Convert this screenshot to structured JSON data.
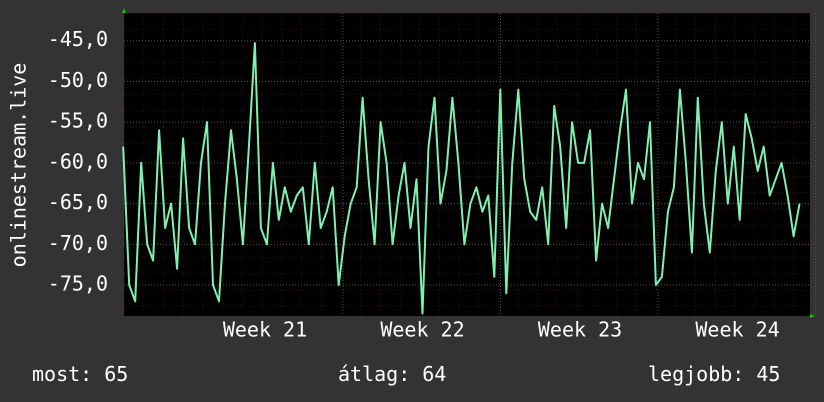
{
  "chart_data": {
    "type": "line",
    "y_label": "onlinestream.live",
    "x": [
      20.1,
      20.138,
      20.176,
      20.214,
      20.252,
      20.29,
      20.328,
      20.366,
      20.404,
      20.442,
      20.48,
      20.518,
      20.556,
      20.594,
      20.632,
      20.67,
      20.708,
      20.746,
      20.784,
      20.822,
      20.86,
      20.898,
      20.936,
      20.974,
      21.012,
      21.05,
      21.088,
      21.126,
      21.164,
      21.202,
      21.24,
      21.278,
      21.316,
      21.354,
      21.392,
      21.43,
      21.468,
      21.506,
      21.544,
      21.582,
      21.62,
      21.658,
      21.696,
      21.734,
      21.772,
      21.81,
      21.848,
      21.886,
      21.924,
      21.962,
      22.0,
      22.038,
      22.076,
      22.114,
      22.152,
      22.19,
      22.228,
      22.266,
      22.304,
      22.342,
      22.38,
      22.418,
      22.456,
      22.494,
      22.532,
      22.57,
      22.608,
      22.646,
      22.684,
      22.722,
      22.76,
      22.798,
      22.836,
      22.874,
      22.912,
      22.95,
      22.988,
      23.026,
      23.064,
      23.102,
      23.14,
      23.178,
      23.216,
      23.254,
      23.292,
      23.33,
      23.368,
      23.406,
      23.444,
      23.482,
      23.52,
      23.558,
      23.596,
      23.634,
      23.672,
      23.71,
      23.748,
      23.786,
      23.824,
      23.862,
      23.9,
      23.938,
      23.976,
      24.014,
      24.052,
      24.09,
      24.128,
      24.166,
      24.204,
      24.242,
      24.28,
      24.318,
      24.356,
      24.394
    ],
    "series": [
      {
        "name": "onlinestream.live",
        "color": "#80f0b0",
        "values": [
          -58,
          -75,
          -77,
          -60,
          -70,
          -72,
          -56,
          -68,
          -65,
          -73,
          -57,
          -68,
          -70,
          -60,
          -55,
          -75,
          -77,
          -65,
          -56,
          -62,
          -70,
          -58,
          -45.3,
          -68,
          -70,
          -60,
          -67,
          -63,
          -66,
          -64,
          -63,
          -70,
          -60,
          -68,
          -66,
          -63,
          -75,
          -69,
          -65,
          -63,
          -52,
          -62,
          -70,
          -55,
          -60,
          -70,
          -64,
          -60,
          -68,
          -62,
          -78.5,
          -58,
          -52,
          -65,
          -61,
          -52,
          -60,
          -70,
          -65,
          -63,
          -66,
          -64,
          -74,
          -51,
          -76,
          -60,
          -51,
          -62,
          -66,
          -67,
          -63,
          -70,
          -53,
          -58,
          -68,
          -55,
          -60,
          -60,
          -56,
          -72,
          -65,
          -68,
          -62,
          -56,
          -51,
          -65,
          -60,
          -62,
          -55,
          -75,
          -74,
          -66,
          -63,
          -51,
          -60,
          -71,
          -52,
          -65,
          -71,
          -61,
          -55,
          -65,
          -58,
          -67,
          -54,
          -57,
          -61,
          -58,
          -64,
          -62,
          -60,
          -64,
          -69,
          -65
        ]
      }
    ],
    "xlim": [
      20.105,
      24.46
    ],
    "xticks": [
      {
        "value": 21,
        "label": "Week 21"
      },
      {
        "value": 22,
        "label": "Week 22"
      },
      {
        "value": 23,
        "label": "Week 23"
      },
      {
        "value": 24,
        "label": "Week 24"
      }
    ],
    "ylim": [
      -78.8,
      -41.6
    ],
    "yticks": [
      {
        "value": -45,
        "label": "-45,0"
      },
      {
        "value": -50,
        "label": "-50,0"
      },
      {
        "value": -55,
        "label": "-55,0"
      },
      {
        "value": -60,
        "label": "-60,0"
      },
      {
        "value": -65,
        "label": "-65,0"
      },
      {
        "value": -70,
        "label": "-70,0"
      },
      {
        "value": -75,
        "label": "-75,0"
      }
    ],
    "grid": true,
    "stats": [
      {
        "label": "most:",
        "value": 65
      },
      {
        "label": "átlag:",
        "value": 64
      },
      {
        "label": "legjobb:",
        "value": 45
      }
    ]
  }
}
